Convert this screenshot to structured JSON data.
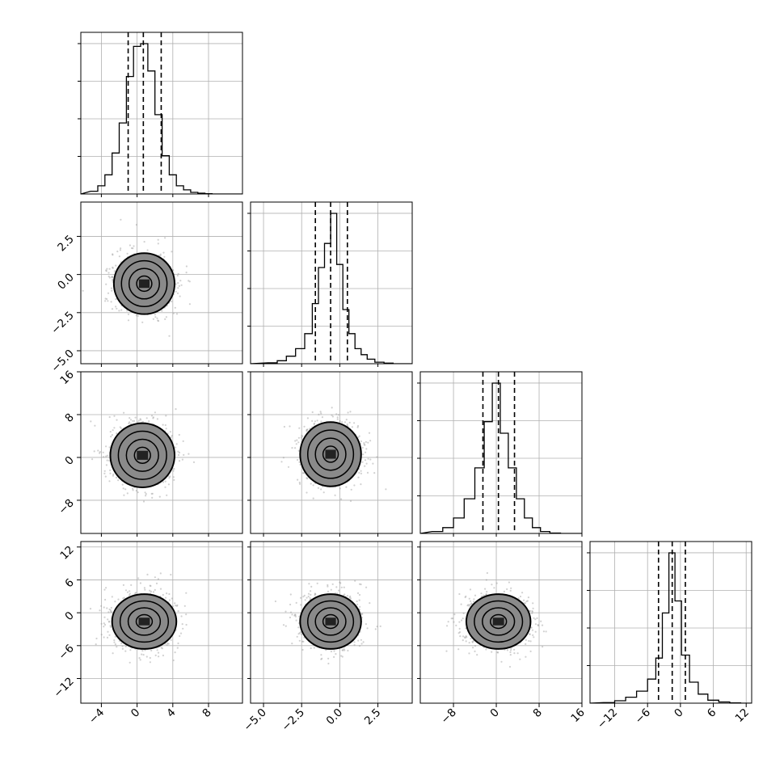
{
  "chart_data": {
    "type": "corner",
    "parameters": 4,
    "grid": true,
    "title": "",
    "parameter_labels": [
      "",
      "",
      "",
      ""
    ],
    "ticks": [
      {
        "labels": [
          "−4",
          "0",
          "4",
          "8"
        ],
        "values": [
          -4,
          0,
          4,
          8
        ],
        "range": [
          -6.3,
          11.8
        ]
      },
      {
        "labels": [
          "−5.0",
          "−2.5",
          "0.0",
          "2.5"
        ],
        "values": [
          -5.0,
          -2.5,
          0.0,
          2.5
        ],
        "range": [
          -5.85,
          4.75
        ]
      },
      {
        "labels": [
          "−8",
          "0",
          "8",
          "16"
        ],
        "values": [
          -8,
          0,
          8,
          16
        ],
        "range": [
          -14.2,
          16.0
        ]
      },
      {
        "labels": [
          "−12",
          "−6",
          "0",
          "6",
          "12"
        ],
        "values": [
          -12,
          -6,
          0,
          6,
          12
        ],
        "range": [
          -16.5,
          13.0
        ]
      }
    ],
    "histograms": [
      {
        "quantiles": [
          -1.0,
          0.7,
          2.7
        ],
        "centers": [
          -4.8,
          -4.0,
          -3.2,
          -2.4,
          -1.6,
          -0.8,
          0.0,
          0.8,
          1.6,
          2.4,
          3.2,
          4.0,
          4.8,
          5.6,
          6.4,
          7.2,
          8.0
        ],
        "counts": [
          1,
          3,
          7,
          15,
          26,
          43,
          54,
          55,
          45,
          29,
          14,
          7,
          3,
          1.5,
          0.6,
          0.3,
          0.1
        ]
      },
      {
        "quantiles": [
          -1.6,
          -0.6,
          0.5
        ],
        "centers": [
          -4.4,
          -3.8,
          -3.2,
          -2.6,
          -2.0,
          -1.6,
          -1.2,
          -0.8,
          -0.4,
          0.0,
          0.4,
          0.8,
          1.2,
          1.6,
          2.0,
          2.6,
          3.2
        ],
        "counts": [
          0.3,
          1,
          2.5,
          5,
          10,
          20,
          32,
          40,
          50,
          33,
          18,
          10,
          5,
          3,
          1.5,
          0.5,
          0.2
        ]
      },
      {
        "quantiles": [
          -2.5,
          0.4,
          3.4
        ],
        "centers": [
          -11.0,
          -9.0,
          -7.0,
          -5.0,
          -3.0,
          -1.5,
          0.0,
          1.5,
          3.0,
          4.5,
          6.0,
          7.5,
          9.0,
          11.0
        ],
        "counts": [
          0.5,
          1.5,
          4,
          9,
          17,
          29,
          39,
          26,
          17,
          9,
          4,
          1.5,
          0.5,
          0.1
        ]
      },
      {
        "quantiles": [
          -4.0,
          -1.5,
          0.9
        ],
        "centers": [
          -13.0,
          -11.0,
          -9.0,
          -7.0,
          -5.0,
          -4.0,
          -2.6,
          -1.6,
          -0.4,
          0.8,
          2.5,
          4.0,
          6.0,
          8.0,
          10.0
        ],
        "counts": [
          0.2,
          0.8,
          2,
          4,
          8,
          15,
          30,
          50,
          34,
          16,
          7,
          3,
          1,
          0.4,
          0.1
        ]
      }
    ],
    "pairs": [
      {
        "x": 0,
        "y": 1,
        "center": [
          0.8,
          -0.6
        ],
        "spread": [
          1.7,
          1.0
        ]
      },
      {
        "x": 0,
        "y": 2,
        "center": [
          0.6,
          0.4
        ],
        "spread": [
          1.8,
          3.0
        ]
      },
      {
        "x": 1,
        "y": 2,
        "center": [
          -0.6,
          0.6
        ],
        "spread": [
          1.0,
          3.0
        ]
      },
      {
        "x": 0,
        "y": 3,
        "center": [
          0.8,
          -1.6
        ],
        "spread": [
          1.8,
          2.5
        ]
      },
      {
        "x": 1,
        "y": 3,
        "center": [
          -0.6,
          -1.6
        ],
        "spread": [
          1.0,
          2.5
        ]
      },
      {
        "x": 2,
        "y": 3,
        "center": [
          0.4,
          -1.6
        ],
        "spread": [
          3.0,
          2.5
        ]
      }
    ],
    "contour_levels": [
      "0.5σ",
      "1σ",
      "1.5σ",
      "2σ"
    ]
  }
}
